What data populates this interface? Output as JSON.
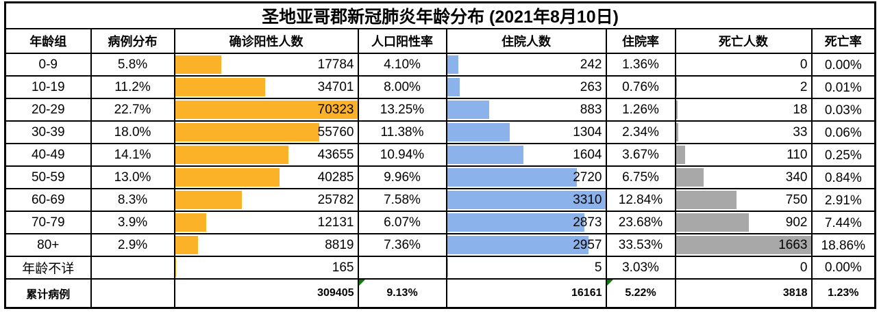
{
  "colors": {
    "positive_bar": "#FCB228",
    "hospitalized_bar": "#8BB2EA",
    "death_bar": "#A8A8A8",
    "flag_green": "#0E7A0E",
    "grid_line": "#000000"
  },
  "chart_data": {
    "type": "table",
    "title": "圣地亚哥郡新冠肺炎年龄分布 (2021年8月10日)",
    "columns": [
      "年龄组",
      "病例分布",
      "确诊阳性人数",
      "人口阳性率",
      "住院人数",
      "住院率",
      "死亡人数",
      "死亡率"
    ],
    "bar_max": {
      "positive": 70323,
      "hospitalized": 3310,
      "deaths": 1663
    },
    "rows": [
      {
        "age": "0-9",
        "case_dist": "5.8%",
        "positive": 17784,
        "pop_rate": "4.10%",
        "hospitalized": 242,
        "hosp_rate": "1.36%",
        "deaths": 0,
        "death_rate": "0.00%"
      },
      {
        "age": "10-19",
        "case_dist": "11.2%",
        "positive": 34701,
        "pop_rate": "8.00%",
        "hospitalized": 263,
        "hosp_rate": "0.76%",
        "deaths": 2,
        "death_rate": "0.01%"
      },
      {
        "age": "20-29",
        "case_dist": "22.7%",
        "positive": 70323,
        "pop_rate": "13.25%",
        "hospitalized": 883,
        "hosp_rate": "1.26%",
        "deaths": 18,
        "death_rate": "0.03%"
      },
      {
        "age": "30-39",
        "case_dist": "18.0%",
        "positive": 55760,
        "pop_rate": "11.38%",
        "hospitalized": 1304,
        "hosp_rate": "2.34%",
        "deaths": 33,
        "death_rate": "0.06%"
      },
      {
        "age": "40-49",
        "case_dist": "14.1%",
        "positive": 43655,
        "pop_rate": "10.94%",
        "hospitalized": 1604,
        "hosp_rate": "3.67%",
        "deaths": 110,
        "death_rate": "0.25%"
      },
      {
        "age": "50-59",
        "case_dist": "13.0%",
        "positive": 40285,
        "pop_rate": "9.96%",
        "hospitalized": 2720,
        "hosp_rate": "6.75%",
        "deaths": 340,
        "death_rate": "0.84%"
      },
      {
        "age": "60-69",
        "case_dist": "8.3%",
        "positive": 25782,
        "pop_rate": "7.58%",
        "hospitalized": 3310,
        "hosp_rate": "12.84%",
        "deaths": 750,
        "death_rate": "2.91%"
      },
      {
        "age": "70-79",
        "case_dist": "3.9%",
        "positive": 12131,
        "pop_rate": "6.07%",
        "hospitalized": 2873,
        "hosp_rate": "23.68%",
        "deaths": 902,
        "death_rate": "7.44%"
      },
      {
        "age": "80+",
        "case_dist": "2.9%",
        "positive": 8819,
        "pop_rate": "7.36%",
        "hospitalized": 2957,
        "hosp_rate": "33.53%",
        "deaths": 1663,
        "death_rate": "18.86%"
      },
      {
        "age": "年龄不详",
        "case_dist": "",
        "positive": 165,
        "pop_rate": "",
        "hospitalized": 5,
        "hosp_rate": "3.03%",
        "deaths": 0,
        "death_rate": "0.00%"
      }
    ],
    "total": {
      "label": "累计病例",
      "case_dist": "",
      "positive": 309405,
      "pop_rate": "9.13%",
      "hospitalized": 16161,
      "hosp_rate": "5.22%",
      "deaths": 3818,
      "death_rate": "1.23%"
    }
  }
}
